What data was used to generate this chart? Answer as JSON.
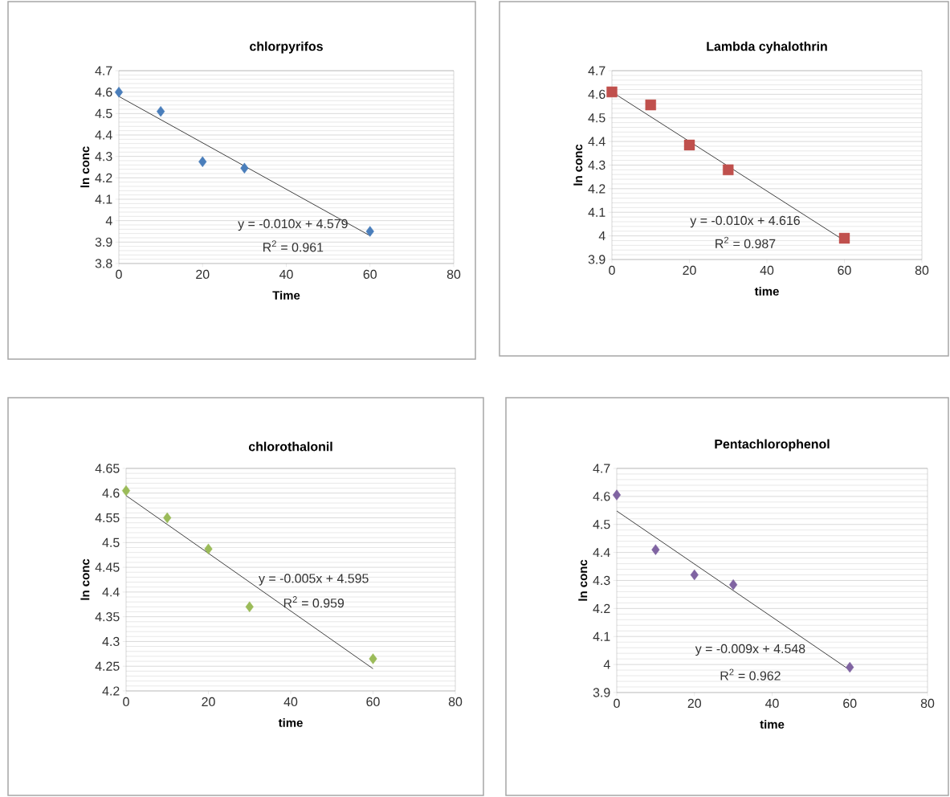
{
  "chart_data": [
    {
      "type": "scatter",
      "title": "chlorpyrifos",
      "xlabel": "Time",
      "ylabel": "ln conc",
      "grid": "y",
      "xlim": [
        0,
        80
      ],
      "xticks": [
        0,
        20,
        40,
        60,
        80
      ],
      "ylim": [
        3.8,
        4.7
      ],
      "yticks": [
        3.8,
        3.9,
        4,
        4.1,
        4.2,
        4.3,
        4.4,
        4.5,
        4.6,
        4.7
      ],
      "series": [
        {
          "marker": "diamond",
          "color": "#4a7ebb",
          "x": [
            0,
            10,
            20,
            30,
            60
          ],
          "values": [
            4.6,
            4.51,
            4.275,
            4.245,
            3.95
          ]
        },
        {
          "type": "line",
          "color": "#404040",
          "x": [
            0,
            60
          ],
          "values": [
            4.58,
            3.93
          ]
        }
      ],
      "annotations": [
        "y = -0.010x + 4.579",
        "R$^{2}$ = 0.961"
      ]
    },
    {
      "type": "scatter",
      "title": "Lambda cyhalothrin",
      "xlabel": "time",
      "ylabel": "ln conc",
      "grid": "y",
      "xlim": [
        0,
        80
      ],
      "xticks": [
        0,
        20,
        40,
        60,
        80
      ],
      "ylim": [
        3.9,
        4.7
      ],
      "yticks": [
        3.9,
        4,
        4.1,
        4.2,
        4.3,
        4.4,
        4.5,
        4.6,
        4.7
      ],
      "series": [
        {
          "marker": "square",
          "color": "#c0504d",
          "x": [
            0,
            10,
            20,
            30,
            60
          ],
          "values": [
            4.61,
            4.555,
            4.385,
            4.28,
            3.99
          ]
        },
        {
          "type": "line",
          "color": "#404040",
          "x": [
            0,
            60
          ],
          "values": [
            4.61,
            3.98
          ]
        }
      ],
      "annotations": [
        "y = -0.010x + 4.616",
        "R$^{2}$ = 0.987"
      ]
    },
    {
      "type": "scatter",
      "title": "chlorothalonil",
      "xlabel": "time",
      "ylabel": "ln conc",
      "grid": "y",
      "xlim": [
        0,
        80
      ],
      "xticks": [
        0,
        20,
        40,
        60,
        80
      ],
      "ylim": [
        4.2,
        4.65
      ],
      "yticks": [
        4.2,
        4.25,
        4.3,
        4.35,
        4.4,
        4.45,
        4.5,
        4.55,
        4.6,
        4.65
      ],
      "series": [
        {
          "marker": "diamond",
          "color": "#9bbb59",
          "x": [
            0,
            10,
            20,
            30,
            60
          ],
          "values": [
            4.605,
            4.55,
            4.487,
            4.37,
            4.265
          ]
        },
        {
          "type": "line",
          "color": "#404040",
          "x": [
            0,
            60
          ],
          "values": [
            4.595,
            4.245
          ]
        }
      ],
      "annotations": [
        "y = -0.005x + 4.595",
        "R$^{2}$ = 0.959"
      ]
    },
    {
      "type": "scatter",
      "title": "Pentachlorophenol",
      "xlabel": "time",
      "ylabel": "ln conc",
      "grid": "y",
      "xlim": [
        0,
        80
      ],
      "xticks": [
        0,
        20,
        40,
        60,
        80
      ],
      "ylim": [
        3.9,
        4.7
      ],
      "yticks": [
        3.9,
        4,
        4.1,
        4.2,
        4.3,
        4.4,
        4.5,
        4.6,
        4.7
      ],
      "series": [
        {
          "marker": "diamond",
          "color": "#8064a2",
          "x": [
            0,
            10,
            20,
            30,
            60
          ],
          "values": [
            4.605,
            4.41,
            4.32,
            4.285,
            3.99
          ]
        },
        {
          "type": "line",
          "color": "#404040",
          "x": [
            0,
            60
          ],
          "values": [
            4.548,
            3.98
          ]
        }
      ],
      "annotations": [
        "y = -0.009x + 4.548",
        "R$^{2}$ = 0.962"
      ]
    }
  ]
}
